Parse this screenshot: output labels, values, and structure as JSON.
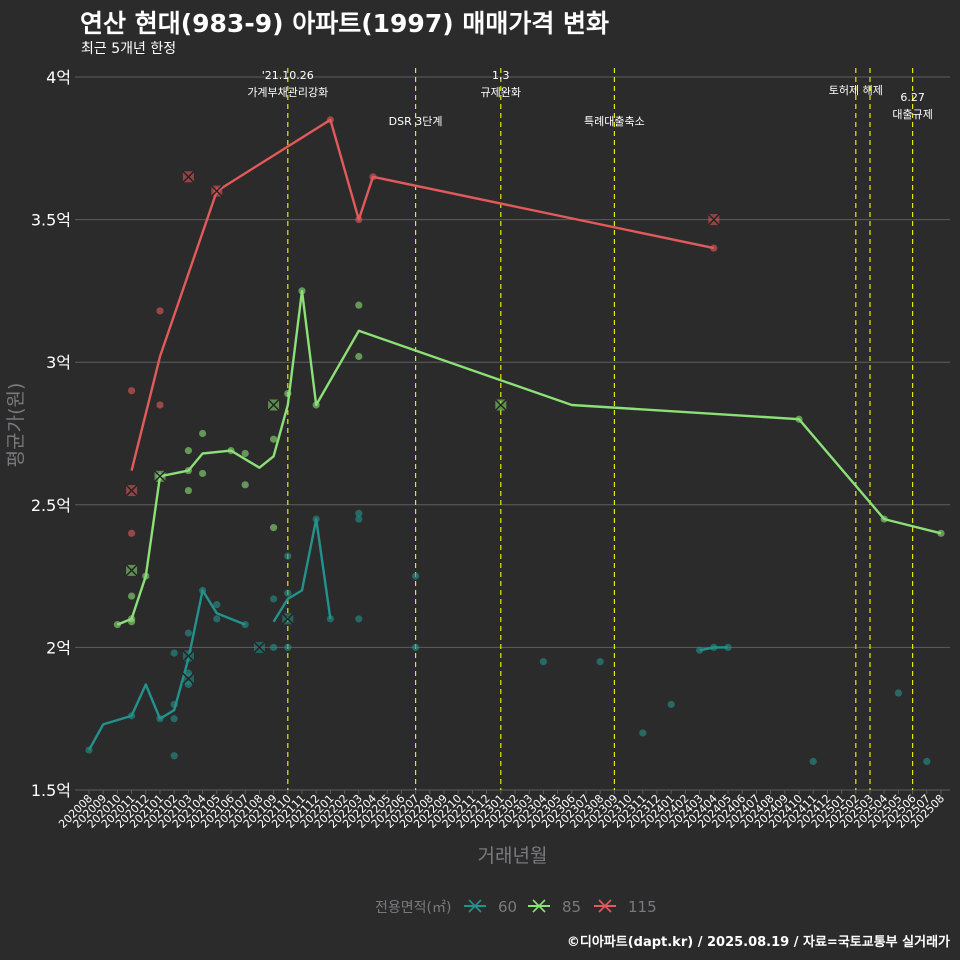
{
  "chart": {
    "title": "연산 현대(983-9) 아파트(1997) 매매가격 변화",
    "subtitle": "최근 5개년 한정",
    "credit": "©디아파트(dapt.kr) / 2025.08.19 / 자료=국토교통부 실거래가",
    "xlabel": "거래년월",
    "ylabel": "평균가(원)",
    "legend_title": "전용면적(㎡)"
  },
  "colors": {
    "background": "#2b2b2c",
    "grid": "#5e5e60",
    "text": "#ffffff",
    "muted": "#7a7a7c",
    "event_line": "#e8e800",
    "s60": "#23928c",
    "s85": "#8be076",
    "s115": "#e35a5a"
  },
  "chart_data": {
    "type": "line",
    "ylim": [
      1.5,
      4.0
    ],
    "yticks": [
      {
        "value": 1.5,
        "label": "1.5억"
      },
      {
        "value": 2.0,
        "label": "2억"
      },
      {
        "value": 2.5,
        "label": "2.5억"
      },
      {
        "value": 3.0,
        "label": "3억"
      },
      {
        "value": 3.5,
        "label": "3.5억"
      },
      {
        "value": 4.0,
        "label": "4억"
      }
    ],
    "xticks": [
      "202008",
      "202009",
      "202010",
      "202011",
      "202012",
      "202101",
      "202102",
      "202103",
      "202104",
      "202105",
      "202106",
      "202107",
      "202108",
      "202109",
      "202110",
      "202111",
      "202112",
      "202201",
      "202202",
      "202203",
      "202204",
      "202205",
      "202206",
      "202207",
      "202208",
      "202209",
      "202210",
      "202211",
      "202212",
      "202301",
      "202302",
      "202303",
      "202304",
      "202305",
      "202306",
      "202307",
      "202308",
      "202309",
      "202310",
      "202311",
      "202312",
      "202401",
      "202402",
      "202403",
      "202404",
      "202405",
      "202406",
      "202407",
      "202408",
      "202409",
      "202410",
      "202411",
      "202412",
      "202501",
      "202502",
      "202503",
      "202504",
      "202505",
      "202506",
      "202507",
      "202508"
    ],
    "grid": true,
    "legend_position": "bottom",
    "events": [
      {
        "x": 14.0,
        "label": "'21.10.26\n가계부채관리강화",
        "row": 1
      },
      {
        "x": 23.0,
        "label": "DSR 3단계",
        "row": 2
      },
      {
        "x": 29.0,
        "label": "1.3\n규제완화",
        "row": 1
      },
      {
        "x": 37.0,
        "label": "특례대출축소",
        "row": 2
      },
      {
        "x": 54.0,
        "label": "토허제 해제",
        "row": 1
      },
      {
        "x": 55.0,
        "label": "",
        "row": 1
      },
      {
        "x": 58.0,
        "label": "6.27\n대출규제",
        "row": 3
      }
    ],
    "series": [
      {
        "name": "60",
        "color_key": "s60",
        "line": [
          [
            0,
            1.64
          ],
          [
            1,
            1.73
          ],
          [
            3,
            1.76
          ],
          [
            4,
            1.87
          ],
          [
            5,
            1.75
          ],
          [
            6,
            1.78
          ],
          [
            7,
            1.96
          ],
          [
            8,
            2.2
          ],
          [
            9,
            2.12
          ],
          [
            11,
            2.08
          ]
        ],
        "line2": [
          [
            13,
            2.09
          ],
          [
            14,
            2.17
          ],
          [
            15,
            2.2
          ],
          [
            16,
            2.45
          ],
          [
            17,
            2.1
          ]
        ],
        "line3": [
          [
            43,
            1.99
          ],
          [
            44,
            2.0
          ],
          [
            45,
            2.0
          ]
        ],
        "points": [
          [
            0,
            1.64
          ],
          [
            3,
            1.76
          ],
          [
            5,
            1.75
          ],
          [
            6,
            1.62
          ],
          [
            6,
            1.75
          ],
          [
            6,
            1.8
          ],
          [
            6,
            1.98
          ],
          [
            7,
            1.87
          ],
          [
            7,
            1.91
          ],
          [
            7,
            2.05
          ],
          [
            8,
            2.2
          ],
          [
            9,
            2.1
          ],
          [
            9,
            2.15
          ],
          [
            11,
            2.08
          ],
          [
            13,
            2.0
          ],
          [
            13,
            2.17
          ],
          [
            14,
            2.0
          ],
          [
            14,
            2.19
          ],
          [
            14,
            2.32
          ],
          [
            16,
            2.45
          ],
          [
            17,
            2.1
          ],
          [
            19,
            2.1
          ],
          [
            19,
            2.45
          ],
          [
            19,
            2.47
          ],
          [
            23,
            2.0
          ],
          [
            23,
            2.25
          ],
          [
            32,
            1.95
          ],
          [
            36,
            1.95
          ],
          [
            39,
            1.7
          ],
          [
            41,
            1.8
          ],
          [
            43,
            1.99
          ],
          [
            44,
            2.0
          ],
          [
            45,
            2.0
          ],
          [
            51,
            1.6
          ],
          [
            57,
            1.84
          ],
          [
            59,
            1.6
          ]
        ],
        "crosses": [
          [
            7,
            1.89
          ],
          [
            7,
            1.97
          ],
          [
            12,
            2.0
          ],
          [
            14,
            2.1
          ]
        ]
      },
      {
        "name": "85",
        "color_key": "s85",
        "line": [
          [
            2,
            2.08
          ],
          [
            3,
            2.1
          ],
          [
            4,
            2.25
          ],
          [
            5,
            2.6
          ],
          [
            7,
            2.62
          ],
          [
            8,
            2.68
          ],
          [
            10,
            2.69
          ],
          [
            12,
            2.63
          ],
          [
            13,
            2.67
          ],
          [
            14,
            2.85
          ],
          [
            15,
            3.25
          ],
          [
            16,
            2.85
          ],
          [
            19,
            3.11
          ],
          [
            34,
            2.85
          ],
          [
            50,
            2.8
          ],
          [
            56,
            2.45
          ],
          [
            60,
            2.4
          ]
        ],
        "points": [
          [
            2,
            2.08
          ],
          [
            3,
            2.09
          ],
          [
            3,
            2.1
          ],
          [
            3,
            2.18
          ],
          [
            4,
            2.25
          ],
          [
            5,
            2.6
          ],
          [
            7,
            2.55
          ],
          [
            7,
            2.62
          ],
          [
            7,
            2.69
          ],
          [
            8,
            2.61
          ],
          [
            8,
            2.75
          ],
          [
            10,
            2.69
          ],
          [
            11,
            2.57
          ],
          [
            11,
            2.68
          ],
          [
            13,
            2.42
          ],
          [
            13,
            2.73
          ],
          [
            14,
            2.89
          ],
          [
            15,
            3.25
          ],
          [
            16,
            2.85
          ],
          [
            19,
            3.02
          ],
          [
            19,
            3.2
          ],
          [
            50,
            2.8
          ],
          [
            56,
            2.45
          ],
          [
            60,
            2.4
          ]
        ],
        "crosses": [
          [
            3,
            2.27
          ],
          [
            5,
            2.6
          ],
          [
            13,
            2.85
          ],
          [
            29,
            2.85
          ]
        ]
      },
      {
        "name": "115",
        "color_key": "s115",
        "line": [
          [
            3,
            2.62
          ],
          [
            5,
            3.02
          ],
          [
            9,
            3.6
          ],
          [
            17,
            3.85
          ],
          [
            19,
            3.5
          ],
          [
            20,
            3.65
          ],
          [
            44,
            3.4
          ]
        ],
        "points": [
          [
            3,
            2.4
          ],
          [
            3,
            2.9
          ],
          [
            5,
            2.85
          ],
          [
            5,
            3.18
          ],
          [
            9,
            3.6
          ],
          [
            17,
            3.85
          ],
          [
            19,
            3.5
          ],
          [
            20,
            3.65
          ],
          [
            44,
            3.4
          ]
        ],
        "crosses": [
          [
            3,
            2.55
          ],
          [
            7,
            3.65
          ],
          [
            9,
            3.6
          ],
          [
            44,
            3.5
          ]
        ]
      }
    ]
  }
}
